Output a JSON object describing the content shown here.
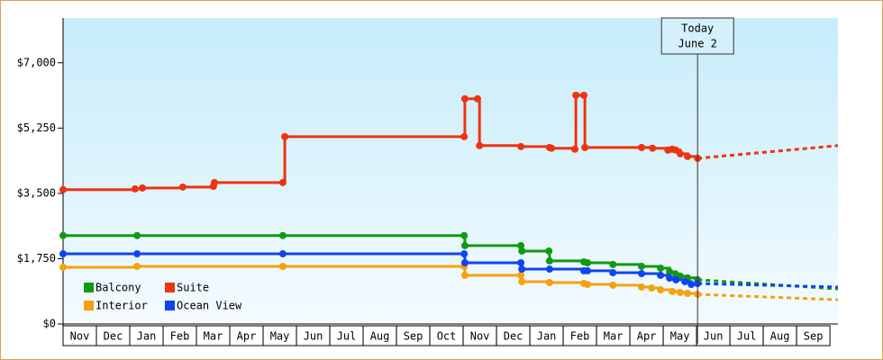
{
  "chart_data": {
    "type": "step-line",
    "xlim": [
      0,
      23.24
    ],
    "ylim": [
      0,
      8200
    ],
    "xticks": [
      {
        "value": 0.5,
        "label": "Nov"
      },
      {
        "value": 1.5,
        "label": "Dec"
      },
      {
        "value": 2.5,
        "label": "Jan"
      },
      {
        "value": 3.5,
        "label": "Feb"
      },
      {
        "value": 4.5,
        "label": "Mar"
      },
      {
        "value": 5.5,
        "label": "Apr"
      },
      {
        "value": 6.5,
        "label": "May"
      },
      {
        "value": 7.5,
        "label": "Jun"
      },
      {
        "value": 8.5,
        "label": "Jul"
      },
      {
        "value": 9.5,
        "label": "Aug"
      },
      {
        "value": 10.5,
        "label": "Sep"
      },
      {
        "value": 11.5,
        "label": "Oct"
      },
      {
        "value": 12.5,
        "label": "Nov"
      },
      {
        "value": 13.5,
        "label": "Dec"
      },
      {
        "value": 14.5,
        "label": "Jan"
      },
      {
        "value": 15.5,
        "label": "Feb"
      },
      {
        "value": 16.5,
        "label": "Mar"
      },
      {
        "value": 17.5,
        "label": "Apr"
      },
      {
        "value": 18.5,
        "label": "May"
      },
      {
        "value": 19.5,
        "label": "Jun"
      },
      {
        "value": 20.5,
        "label": "Jul"
      },
      {
        "value": 21.5,
        "label": "Aug"
      },
      {
        "value": 22.5,
        "label": "Sep"
      }
    ],
    "yticks": [
      {
        "value": 0,
        "label": "$0"
      },
      {
        "value": 1750,
        "label": "$1,750"
      },
      {
        "value": 3500,
        "label": "$3,500"
      },
      {
        "value": 5250,
        "label": "$5,250"
      },
      {
        "value": 7000,
        "label": "$7,000"
      }
    ],
    "today": {
      "x": 19.03,
      "label": "Today",
      "date": "June 2"
    },
    "series": [
      {
        "name": "Balcony",
        "color": "#119911",
        "x": [
          0,
          2.22,
          6.59,
          12.03,
          12.05,
          13.73,
          13.76,
          14.57,
          14.59,
          15.62,
          15.73,
          16.49,
          17.35,
          17.92,
          18.19,
          18.38,
          18.51,
          18.73,
          19.03
        ],
        "values": [
          2370,
          2370,
          2370,
          2370,
          2100,
          2100,
          1955,
          1955,
          1690,
          1665,
          1640,
          1595,
          1545,
          1495,
          1400,
          1330,
          1280,
          1235,
          1185
        ],
        "forecast_x": [
          19.03,
          23.24
        ],
        "forecast_values": [
          1185,
          940
        ]
      },
      {
        "name": "Suite",
        "color": "#ee3311",
        "x": [
          0,
          2.16,
          2.38,
          3.59,
          4.51,
          4.54,
          6.59,
          6.65,
          12.03,
          12.05,
          12.43,
          12.49,
          13.73,
          14.59,
          14.65,
          15.35,
          15.38,
          15.62,
          15.65,
          17.35,
          17.68,
          18.14,
          18.27,
          18.38,
          18.51,
          18.73,
          19.03
        ],
        "values": [
          3600,
          3620,
          3645,
          3670,
          3690,
          3790,
          3790,
          5020,
          5020,
          6035,
          6035,
          4780,
          4755,
          4730,
          4710,
          4685,
          6130,
          6130,
          4730,
          4730,
          4710,
          4660,
          4685,
          4660,
          4560,
          4490,
          4440
        ],
        "forecast_x": [
          19.03,
          23.24
        ],
        "forecast_values": [
          4440,
          4780
        ]
      },
      {
        "name": "Interior",
        "color": "#f5a10f",
        "x": [
          0,
          2.22,
          6.59,
          12.03,
          12.05,
          13.73,
          13.76,
          14.59,
          15.62,
          15.73,
          16.49,
          17.35,
          17.65,
          17.92,
          18.27,
          18.51,
          18.73,
          19.03
        ],
        "values": [
          1520,
          1545,
          1545,
          1545,
          1305,
          1305,
          1135,
          1110,
          1085,
          1060,
          1040,
          990,
          965,
          915,
          870,
          845,
          820,
          795
        ],
        "forecast_x": [
          19.03,
          23.24
        ],
        "forecast_values": [
          795,
          650
        ]
      },
      {
        "name": "Ocean View",
        "color": "#1144ee",
        "x": [
          0,
          2.22,
          6.59,
          12.03,
          12.05,
          13.73,
          13.76,
          14.59,
          15.62,
          15.73,
          16.49,
          17.35,
          17.92,
          18.19,
          18.38,
          18.65,
          18.84,
          19.03
        ],
        "values": [
          1880,
          1880,
          1880,
          1880,
          1640,
          1640,
          1470,
          1470,
          1425,
          1425,
          1375,
          1350,
          1305,
          1230,
          1185,
          1135,
          1060,
          1085
        ],
        "forecast_x": [
          19.03,
          23.24
        ],
        "forecast_values": [
          1085,
          990
        ]
      }
    ]
  }
}
